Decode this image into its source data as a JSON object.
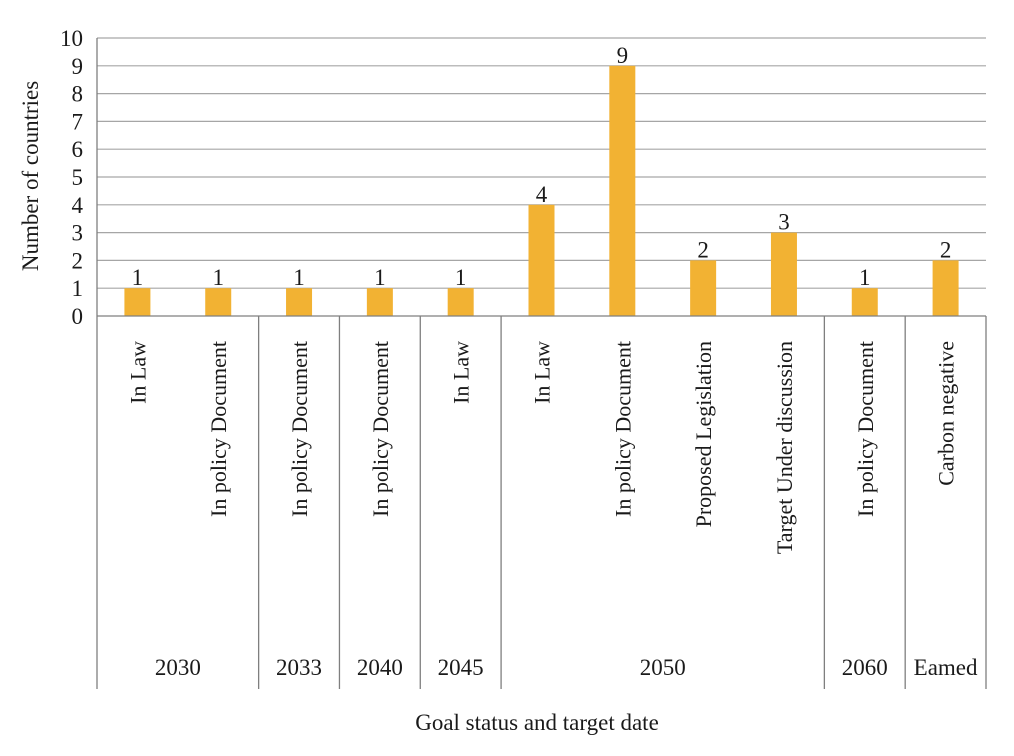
{
  "chart_data": {
    "type": "bar",
    "title": "",
    "xlabel": "Goal status and target date",
    "ylabel": "Number of countries",
    "ylim": [
      0,
      10
    ],
    "yticks": [
      0,
      1,
      2,
      3,
      4,
      5,
      6,
      7,
      8,
      9,
      10
    ],
    "grid": true,
    "legend": "none",
    "bar_color": "#F2B233",
    "grid_color": "#a6a6a6",
    "categories": [
      "In Law",
      "In policy Document",
      "In policy Document",
      "In policy Document",
      "In Law",
      "In Law",
      "In policy Document",
      "Proposed Legislation",
      "Target Under discussion",
      "In policy Document",
      "Carbon negative"
    ],
    "values": [
      1,
      1,
      1,
      1,
      1,
      4,
      9,
      2,
      3,
      1,
      2
    ],
    "data_labels": [
      "1",
      "1",
      "1",
      "1",
      "1",
      "4",
      "9",
      "2",
      "3",
      "1",
      "2"
    ],
    "groups": [
      {
        "label": "2030",
        "count": 2
      },
      {
        "label": "2033",
        "count": 1
      },
      {
        "label": "2040",
        "count": 1
      },
      {
        "label": "2045",
        "count": 1
      },
      {
        "label": "2050",
        "count": 4
      },
      {
        "label": "2060",
        "count": 1
      },
      {
        "label": "Eamed",
        "count": 1
      }
    ]
  }
}
